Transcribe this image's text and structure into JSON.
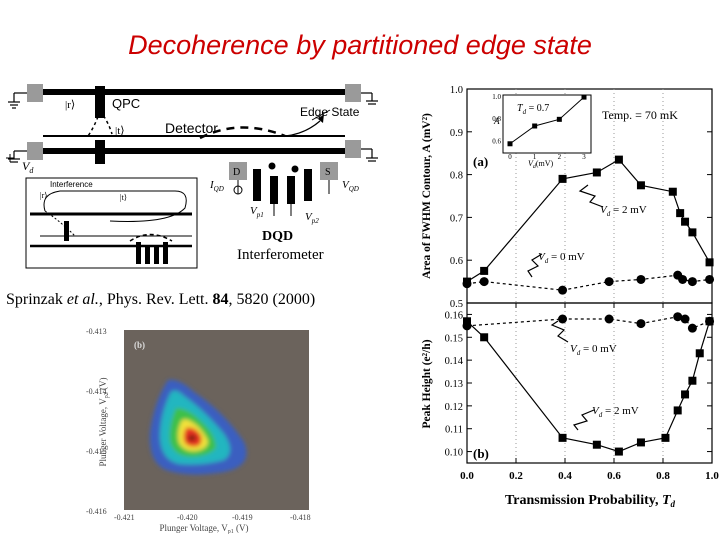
{
  "slide": {
    "title": "Decoherence by partitioned edge state",
    "citation": {
      "authors": "Sprinzak",
      "etal": "et al.",
      "journal": ", Phys. Rev. Lett. ",
      "volume": "84",
      "pages": ", 5820 (2000)"
    }
  },
  "schematic": {
    "r_ket": "|r⟩",
    "t_ket": "|t⟩",
    "qpc": "QPC",
    "detector": "Detector",
    "edge_state": "Edge State",
    "vd": "V",
    "vd_sub": "d",
    "d_label": "D",
    "s_label": "S",
    "iqd": "I",
    "iqd_sub": "QD",
    "vqd": "V",
    "vqd_sub": "QD",
    "vp1": "V",
    "vp1_sub": "p1",
    "vp2": "V",
    "vp2_sub": "p2",
    "dqd": "DQD",
    "interferometer": "Interferometer",
    "inset": {
      "r_ket": "|r⟩",
      "t_ket": "|t⟩",
      "interference": "Interference"
    }
  },
  "contour": {
    "panel": "(b)",
    "ylabel": "Plunger Voltage, V",
    "ylabel_sub": "p2",
    "ylabel_unit": " (V)",
    "xlabel": "Plunger Voltage, V",
    "xlabel_sub": "p1",
    "xlabel_unit": " (V)",
    "yticks": [
      "-0.413",
      "-0.414",
      "-0.415",
      "-0.416"
    ],
    "xticks": [
      "-0.421",
      "-0.420",
      "-0.419",
      "-0.418"
    ]
  },
  "chart_data": [
    {
      "type": "line",
      "title": "Area of FWHM Contour",
      "panel": "(a)",
      "annotation": "Temp. = 70 mK",
      "ylabel": "Area of FWHM Contour, A (mV²)",
      "xlabel": "",
      "xlim": [
        0,
        1
      ],
      "ylim": [
        0.5,
        1.0
      ],
      "yticks": [
        "0.5",
        "0.6",
        "0.7",
        "0.8",
        "0.9",
        "1.0"
      ],
      "series": [
        {
          "name": "Vd = 2 mV",
          "label": "V",
          "label_sub": "d",
          "label_val": " = 2 mV",
          "x": [
            0.0,
            0.07,
            0.39,
            0.53,
            0.62,
            0.71,
            0.84,
            0.87,
            0.89,
            0.92,
            0.99
          ],
          "y": [
            0.55,
            0.575,
            0.79,
            0.805,
            0.835,
            0.775,
            0.76,
            0.71,
            0.69,
            0.665,
            0.595
          ]
        },
        {
          "name": "Vd = 0 mV",
          "label": "V",
          "label_sub": "d",
          "label_val": " = 0 mV",
          "x": [
            0.0,
            0.07,
            0.39,
            0.58,
            0.71,
            0.86,
            0.88,
            0.92,
            0.99
          ],
          "y": [
            0.545,
            0.55,
            0.53,
            0.55,
            0.555,
            0.565,
            0.555,
            0.55,
            0.555
          ]
        }
      ],
      "inset": {
        "label": "T",
        "label_sub": "d",
        "label_val": " = 0.7",
        "ylabel": "A",
        "xlabel": "V",
        "xlabel_sub": "d",
        "xlabel_unit": "(mV)",
        "xticks": [
          "0",
          "1",
          "2",
          "3"
        ],
        "yticks": [
          "0.6",
          "0.8",
          "1.0"
        ],
        "x": [
          0,
          1,
          2,
          3
        ],
        "y": [
          0.57,
          0.73,
          0.79,
          0.99
        ]
      }
    },
    {
      "type": "line",
      "title": "Peak Height",
      "panel": "(b)",
      "ylabel": "Peak Height (e²/h)",
      "xlabel": "Transmission Probability, ",
      "xlabel_var": "T",
      "xlabel_sub": "d",
      "xlim": [
        0,
        1
      ],
      "ylim": [
        0.095,
        0.165
      ],
      "xticks": [
        "0.0",
        "0.2",
        "0.4",
        "0.6",
        "0.8",
        "1.0"
      ],
      "yticks": [
        "0.10",
        "0.11",
        "0.12",
        "0.13",
        "0.14",
        "0.15",
        "0.16"
      ],
      "series": [
        {
          "name": "Vd = 0 mV",
          "label": "V",
          "label_sub": "d",
          "label_val": " = 0 mV",
          "x": [
            0.0,
            0.39,
            0.58,
            0.71,
            0.86,
            0.89,
            0.92,
            0.99
          ],
          "y": [
            0.155,
            0.158,
            0.158,
            0.156,
            0.159,
            0.158,
            0.154,
            0.157
          ]
        },
        {
          "name": "Vd = 2 mV",
          "label": "V",
          "label_sub": "d",
          "label_val": " = 2 mV",
          "x": [
            0.0,
            0.07,
            0.39,
            0.53,
            0.62,
            0.71,
            0.81,
            0.86,
            0.89,
            0.92,
            0.95,
            0.99
          ],
          "y": [
            0.157,
            0.15,
            0.106,
            0.103,
            0.1,
            0.104,
            0.106,
            0.118,
            0.125,
            0.131,
            0.143,
            0.157
          ]
        }
      ]
    }
  ]
}
